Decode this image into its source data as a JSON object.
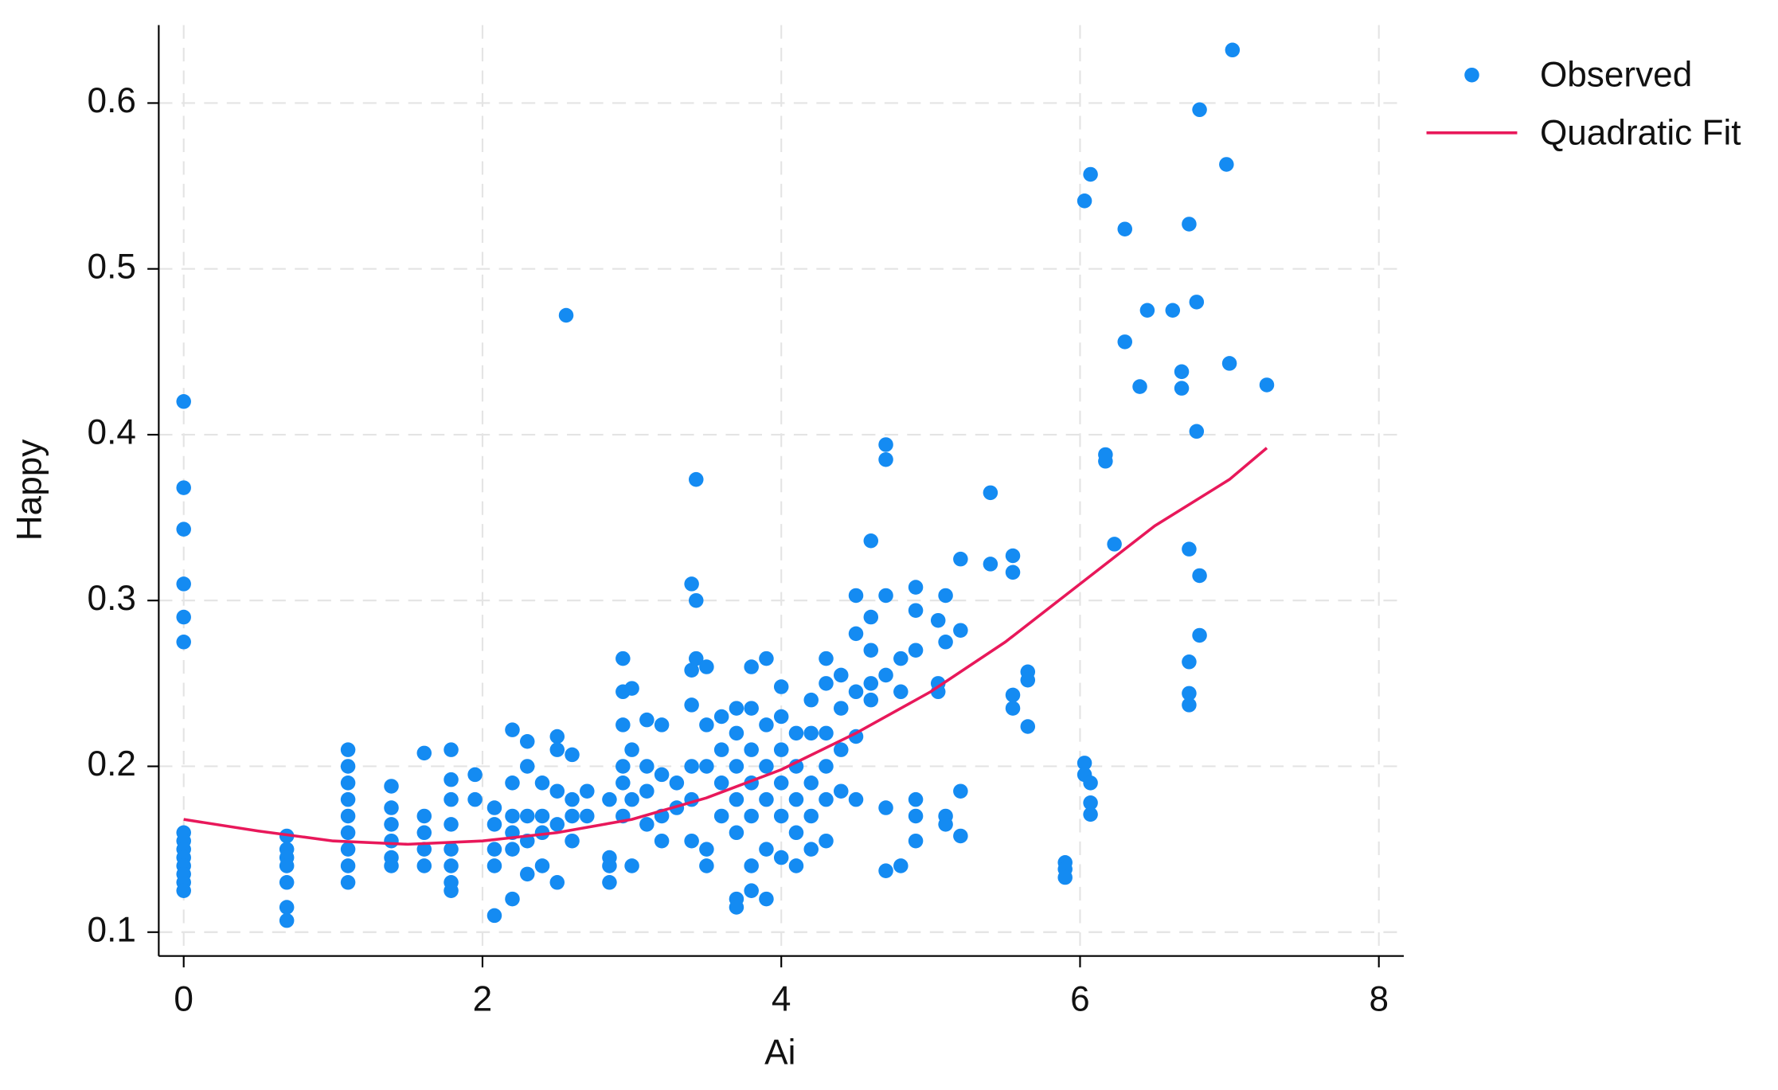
{
  "chart_data": {
    "type": "scatter",
    "x_label": "Ai",
    "y_label": "Happy",
    "xlim": [
      -0.167,
      8.167
    ],
    "ylim": [
      0.0856,
      0.647
    ],
    "xticks": [
      0,
      2,
      4,
      6,
      8
    ],
    "yticks": [
      0.1,
      0.2,
      0.3,
      0.4,
      0.5,
      0.6
    ],
    "grid": true,
    "legend": "outside-top-right",
    "series": [
      {
        "name": "Observed",
        "type": "scatter",
        "color": "#148bf2",
        "x": [
          0,
          0,
          0,
          0,
          0,
          0,
          0,
          0,
          0,
          0,
          0,
          0,
          0,
          0,
          0.69,
          0.69,
          0.69,
          0.69,
          0.69,
          0.69,
          0.69,
          1.1,
          1.1,
          1.1,
          1.1,
          1.1,
          1.1,
          1.1,
          1.1,
          1.1,
          1.39,
          1.39,
          1.39,
          1.39,
          1.39,
          1.39,
          1.61,
          1.61,
          1.61,
          1.61,
          1.61,
          1.79,
          1.79,
          1.79,
          1.79,
          1.79,
          1.79,
          1.79,
          1.79,
          1.95,
          1.95,
          2.08,
          2.08,
          2.08,
          2.08,
          2.08,
          2.2,
          2.2,
          2.2,
          2.2,
          2.2,
          2.2,
          2.3,
          2.3,
          2.3,
          2.3,
          2.3,
          2.4,
          2.4,
          2.4,
          2.4,
          2.5,
          2.5,
          2.5,
          2.5,
          2.5,
          2.56,
          2.6,
          2.6,
          2.6,
          2.6,
          2.7,
          2.7,
          2.85,
          2.85,
          2.85,
          2.85,
          2.94,
          2.94,
          2.94,
          2.94,
          2.94,
          2.94,
          3.0,
          3.0,
          3.0,
          3.0,
          3.1,
          3.1,
          3.1,
          3.1,
          3.2,
          3.2,
          3.2,
          3.2,
          3.3,
          3.3,
          3.4,
          3.4,
          3.4,
          3.4,
          3.4,
          3.4,
          3.43,
          3.43,
          3.43,
          3.5,
          3.5,
          3.5,
          3.5,
          3.5,
          3.6,
          3.6,
          3.6,
          3.6,
          3.7,
          3.7,
          3.7,
          3.7,
          3.7,
          3.7,
          3.7,
          3.8,
          3.8,
          3.8,
          3.8,
          3.8,
          3.8,
          3.8,
          3.9,
          3.9,
          3.9,
          3.9,
          3.9,
          3.9,
          4.0,
          4.0,
          4.0,
          4.0,
          4.0,
          4.0,
          4.1,
          4.1,
          4.1,
          4.1,
          4.1,
          4.2,
          4.2,
          4.2,
          4.2,
          4.2,
          4.3,
          4.3,
          4.3,
          4.3,
          4.3,
          4.3,
          4.4,
          4.4,
          4.4,
          4.4,
          4.5,
          4.5,
          4.5,
          4.5,
          4.5,
          4.6,
          4.6,
          4.6,
          4.6,
          4.6,
          4.7,
          4.7,
          4.7,
          4.7,
          4.7,
          4.7,
          4.8,
          4.8,
          4.8,
          4.9,
          4.9,
          4.9,
          4.9,
          4.9,
          4.9,
          5.05,
          5.05,
          5.05,
          5.1,
          5.1,
          5.1,
          5.1,
          5.2,
          5.2,
          5.2,
          5.2,
          5.4,
          5.4,
          5.55,
          5.55,
          5.55,
          5.55,
          5.65,
          5.65,
          5.65,
          5.9,
          5.9,
          5.9,
          6.03,
          6.03,
          6.03,
          6.07,
          6.07,
          6.07,
          6.07,
          6.17,
          6.17,
          6.23,
          6.3,
          6.3,
          6.4,
          6.45,
          6.62,
          6.68,
          6.68,
          6.73,
          6.73,
          6.73,
          6.73,
          6.73,
          6.78,
          6.78,
          6.8,
          6.8,
          6.8,
          6.98,
          7.0,
          7.02,
          7.25
        ],
        "values": [
          0.42,
          0.368,
          0.343,
          0.31,
          0.29,
          0.275,
          0.16,
          0.155,
          0.15,
          0.145,
          0.14,
          0.135,
          0.13,
          0.125,
          0.158,
          0.15,
          0.145,
          0.14,
          0.13,
          0.115,
          0.107,
          0.21,
          0.2,
          0.19,
          0.18,
          0.17,
          0.16,
          0.15,
          0.14,
          0.13,
          0.188,
          0.175,
          0.165,
          0.155,
          0.145,
          0.14,
          0.208,
          0.17,
          0.16,
          0.15,
          0.14,
          0.21,
          0.192,
          0.18,
          0.165,
          0.15,
          0.14,
          0.13,
          0.125,
          0.195,
          0.18,
          0.175,
          0.165,
          0.15,
          0.14,
          0.11,
          0.222,
          0.19,
          0.17,
          0.16,
          0.15,
          0.12,
          0.215,
          0.2,
          0.17,
          0.155,
          0.135,
          0.19,
          0.17,
          0.16,
          0.14,
          0.218,
          0.21,
          0.185,
          0.165,
          0.13,
          0.472,
          0.207,
          0.18,
          0.17,
          0.155,
          0.185,
          0.17,
          0.18,
          0.145,
          0.13,
          0.14,
          0.265,
          0.245,
          0.225,
          0.2,
          0.19,
          0.17,
          0.247,
          0.21,
          0.18,
          0.14,
          0.228,
          0.2,
          0.185,
          0.165,
          0.225,
          0.195,
          0.17,
          0.155,
          0.19,
          0.175,
          0.31,
          0.258,
          0.237,
          0.2,
          0.18,
          0.155,
          0.373,
          0.3,
          0.265,
          0.26,
          0.225,
          0.2,
          0.15,
          0.14,
          0.23,
          0.21,
          0.19,
          0.17,
          0.235,
          0.22,
          0.2,
          0.18,
          0.16,
          0.12,
          0.115,
          0.26,
          0.235,
          0.21,
          0.19,
          0.17,
          0.14,
          0.125,
          0.265,
          0.225,
          0.2,
          0.18,
          0.15,
          0.12,
          0.248,
          0.23,
          0.21,
          0.19,
          0.17,
          0.145,
          0.22,
          0.2,
          0.18,
          0.16,
          0.14,
          0.24,
          0.22,
          0.19,
          0.17,
          0.15,
          0.265,
          0.25,
          0.22,
          0.2,
          0.18,
          0.155,
          0.255,
          0.235,
          0.21,
          0.185,
          0.303,
          0.28,
          0.245,
          0.218,
          0.18,
          0.336,
          0.29,
          0.27,
          0.25,
          0.24,
          0.394,
          0.385,
          0.303,
          0.255,
          0.175,
          0.137,
          0.265,
          0.245,
          0.14,
          0.308,
          0.294,
          0.27,
          0.18,
          0.17,
          0.155,
          0.288,
          0.25,
          0.245,
          0.303,
          0.275,
          0.17,
          0.165,
          0.325,
          0.282,
          0.185,
          0.158,
          0.365,
          0.322,
          0.327,
          0.317,
          0.243,
          0.235,
          0.257,
          0.252,
          0.224,
          0.142,
          0.138,
          0.133,
          0.541,
          0.202,
          0.195,
          0.557,
          0.19,
          0.178,
          0.171,
          0.388,
          0.384,
          0.334,
          0.524,
          0.456,
          0.429,
          0.475,
          0.475,
          0.438,
          0.428,
          0.527,
          0.331,
          0.263,
          0.244,
          0.237,
          0.48,
          0.402,
          0.596,
          0.315,
          0.279,
          0.563,
          0.443,
          0.632,
          0.43
        ]
      },
      {
        "name": "Quadratic Fit",
        "type": "line",
        "color": "#e8185a",
        "x": [
          0,
          0.5,
          1,
          1.5,
          2,
          2.5,
          3,
          3.5,
          4,
          4.5,
          5,
          5.5,
          6,
          6.5,
          7,
          7.25
        ],
        "values": [
          0.168,
          0.161,
          0.155,
          0.153,
          0.155,
          0.16,
          0.168,
          0.181,
          0.198,
          0.22,
          0.245,
          0.275,
          0.31,
          0.345,
          0.373,
          0.392
        ]
      }
    ]
  }
}
